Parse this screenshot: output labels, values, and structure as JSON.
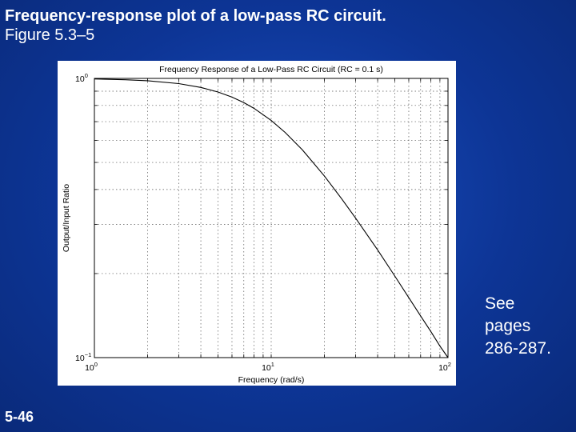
{
  "slide": {
    "title_line1": "Frequency-response plot of a low-pass RC circuit.",
    "title_line2": "Figure 5.3–5",
    "note_lines": [
      "See",
      "pages",
      "286-287."
    ],
    "number": "5-46"
  },
  "chart_data": {
    "type": "line",
    "title": "Frequency Response of a Low-Pass RC Circuit (RC = 0.1 s)",
    "xlabel": "Frequency (rad/s)",
    "ylabel": "Output/Input Ratio",
    "xscale": "log",
    "yscale": "log",
    "xlim": [
      1,
      100
    ],
    "ylim": [
      0.1,
      1
    ],
    "grid": true,
    "x_ticks": [
      {
        "value": 1,
        "base": "10",
        "exp": "0"
      },
      {
        "value": 10,
        "base": "10",
        "exp": "1"
      },
      {
        "value": 100,
        "base": "10",
        "exp": "2"
      }
    ],
    "y_ticks": [
      {
        "value": 0.1,
        "base": "10",
        "exp": "−1"
      },
      {
        "value": 1,
        "base": "10",
        "exp": "0"
      }
    ],
    "series": [
      {
        "x": [
          1,
          1.5,
          2,
          3,
          4,
          5,
          6,
          7,
          8,
          10,
          12,
          15,
          20,
          25,
          30,
          40,
          50,
          60,
          70,
          80,
          90,
          100
        ],
        "y": [
          0.995,
          0.989,
          0.981,
          0.958,
          0.928,
          0.894,
          0.857,
          0.819,
          0.781,
          0.707,
          0.64,
          0.555,
          0.447,
          0.371,
          0.316,
          0.243,
          0.196,
          0.164,
          0.141,
          0.124,
          0.11,
          0.0995
        ]
      }
    ]
  }
}
